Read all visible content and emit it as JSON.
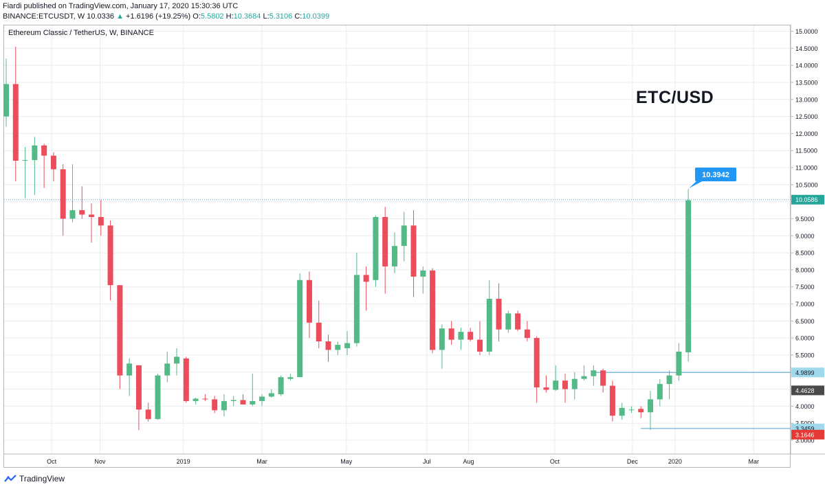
{
  "header": {
    "line1": "Fiardi published on TradingView.com, January 17, 2020 15:30:36 UTC",
    "symbol": "BINANCE:ETCUSDT, W",
    "last": "10.0336",
    "change": "+1.6196 (+19.25%)",
    "o_label": "O:",
    "o_val": "5.5802",
    "h_label": "H:",
    "h_val": "10.3684",
    "l_label": "L:",
    "l_val": "5.3106",
    "c_label": "C:",
    "c_val": "10.0399"
  },
  "symbol_label": "Ethereum Classic / TetherUS, W, BINANCE",
  "big_title": "ETC/USD",
  "footer": {
    "brand": "TradingView"
  },
  "colors": {
    "up": "#26a69a",
    "down": "#ef5350",
    "up_fill": "#53b987",
    "down_fill": "#eb4d5c",
    "line": "#4a9fd5",
    "callout": "#2196f3",
    "last_price_bg": "#26a69a"
  },
  "chart_data": {
    "type": "candlestick",
    "ylim": [
      2.9,
      15.1
    ],
    "yticks": [
      "3.0000",
      "3.5000",
      "4.0000",
      "4.5000",
      "5.0000",
      "5.5000",
      "6.0000",
      "6.5000",
      "7.0000",
      "7.5000",
      "8.0000",
      "8.5000",
      "9.0000",
      "9.5000",
      "10.0000",
      "10.5000",
      "11.0000",
      "11.5000",
      "12.0000",
      "12.5000",
      "13.0000",
      "13.5000",
      "14.0000",
      "14.5000",
      "15.0000"
    ],
    "xticks": [
      {
        "label": "Oct",
        "index": 4.8
      },
      {
        "label": "Nov",
        "index": 9.9
      },
      {
        "label": "2019",
        "index": 18.7
      },
      {
        "label": "Mar",
        "index": 27.0
      },
      {
        "label": "May",
        "index": 35.9
      },
      {
        "label": "Jul",
        "index": 44.4
      },
      {
        "label": "Aug",
        "index": 48.8
      },
      {
        "label": "Oct",
        "index": 57.9
      },
      {
        "label": "Dec",
        "index": 66.1
      },
      {
        "label": "2020",
        "index": 70.6
      },
      {
        "label": "Mar",
        "index": 78.9
      }
    ],
    "candles": [
      {
        "o": 12.5,
        "h": 14.2,
        "l": 12.2,
        "c": 13.45
      },
      {
        "o": 13.45,
        "h": 14.55,
        "l": 10.6,
        "c": 11.2
      },
      {
        "o": 11.2,
        "h": 11.6,
        "l": 10.1,
        "c": 11.22
      },
      {
        "o": 11.22,
        "h": 11.9,
        "l": 10.2,
        "c": 11.65
      },
      {
        "o": 11.65,
        "h": 11.7,
        "l": 10.4,
        "c": 11.35
      },
      {
        "o": 11.35,
        "h": 11.45,
        "l": 10.6,
        "c": 10.95
      },
      {
        "o": 10.95,
        "h": 11.1,
        "l": 9.0,
        "c": 9.5
      },
      {
        "o": 9.5,
        "h": 11.1,
        "l": 9.4,
        "c": 9.75
      },
      {
        "o": 9.75,
        "h": 10.45,
        "l": 9.5,
        "c": 9.62
      },
      {
        "o": 9.62,
        "h": 9.95,
        "l": 8.8,
        "c": 9.55
      },
      {
        "o": 9.55,
        "h": 10.05,
        "l": 9.0,
        "c": 9.3
      },
      {
        "o": 9.3,
        "h": 9.45,
        "l": 7.1,
        "c": 7.55
      },
      {
        "o": 7.55,
        "h": 7.55,
        "l": 4.5,
        "c": 4.9
      },
      {
        "o": 4.9,
        "h": 5.4,
        "l": 4.3,
        "c": 5.25
      },
      {
        "o": 5.2,
        "h": 5.2,
        "l": 3.3,
        "c": 3.9
      },
      {
        "o": 3.9,
        "h": 4.1,
        "l": 3.55,
        "c": 3.62
      },
      {
        "o": 3.62,
        "h": 4.95,
        "l": 3.6,
        "c": 4.9
      },
      {
        "o": 4.9,
        "h": 5.6,
        "l": 4.7,
        "c": 5.25
      },
      {
        "o": 5.25,
        "h": 5.7,
        "l": 4.9,
        "c": 5.45
      },
      {
        "o": 5.4,
        "h": 5.45,
        "l": 4.1,
        "c": 4.15
      },
      {
        "o": 4.15,
        "h": 4.25,
        "l": 4.05,
        "c": 4.22
      },
      {
        "o": 4.22,
        "h": 4.35,
        "l": 4.15,
        "c": 4.2
      },
      {
        "o": 4.2,
        "h": 4.3,
        "l": 3.8,
        "c": 3.88
      },
      {
        "o": 3.88,
        "h": 4.35,
        "l": 3.7,
        "c": 4.15
      },
      {
        "o": 4.15,
        "h": 4.3,
        "l": 4.0,
        "c": 4.18
      },
      {
        "o": 4.18,
        "h": 4.35,
        "l": 4.05,
        "c": 4.05
      },
      {
        "o": 4.05,
        "h": 4.95,
        "l": 4.0,
        "c": 4.15
      },
      {
        "o": 4.15,
        "h": 4.35,
        "l": 4.0,
        "c": 4.28
      },
      {
        "o": 4.28,
        "h": 4.5,
        "l": 4.25,
        "c": 4.38
      },
      {
        "o": 4.35,
        "h": 4.9,
        "l": 4.3,
        "c": 4.85
      },
      {
        "o": 4.8,
        "h": 4.95,
        "l": 4.75,
        "c": 4.85
      },
      {
        "o": 4.85,
        "h": 7.9,
        "l": 4.85,
        "c": 7.7
      },
      {
        "o": 7.7,
        "h": 7.95,
        "l": 6.0,
        "c": 6.45
      },
      {
        "o": 6.45,
        "h": 7.1,
        "l": 5.7,
        "c": 5.9
      },
      {
        "o": 5.9,
        "h": 6.1,
        "l": 5.3,
        "c": 5.65
      },
      {
        "o": 5.65,
        "h": 5.9,
        "l": 5.5,
        "c": 5.8
      },
      {
        "o": 5.7,
        "h": 6.2,
        "l": 5.5,
        "c": 5.85
      },
      {
        "o": 5.85,
        "h": 8.5,
        "l": 5.75,
        "c": 7.85
      },
      {
        "o": 7.85,
        "h": 8.1,
        "l": 6.8,
        "c": 7.65
      },
      {
        "o": 7.7,
        "h": 9.6,
        "l": 7.5,
        "c": 9.55
      },
      {
        "o": 9.55,
        "h": 9.85,
        "l": 7.3,
        "c": 8.1
      },
      {
        "o": 8.1,
        "h": 9.1,
        "l": 7.9,
        "c": 8.7
      },
      {
        "o": 8.7,
        "h": 9.7,
        "l": 8.25,
        "c": 9.3
      },
      {
        "o": 9.3,
        "h": 9.75,
        "l": 7.2,
        "c": 7.8
      },
      {
        "o": 7.8,
        "h": 8.1,
        "l": 7.3,
        "c": 7.98
      },
      {
        "o": 7.98,
        "h": 8.05,
        "l": 5.55,
        "c": 5.65
      },
      {
        "o": 5.65,
        "h": 6.4,
        "l": 5.1,
        "c": 6.28
      },
      {
        "o": 6.28,
        "h": 6.5,
        "l": 5.8,
        "c": 5.95
      },
      {
        "o": 5.95,
        "h": 6.3,
        "l": 5.65,
        "c": 6.18
      },
      {
        "o": 6.18,
        "h": 6.3,
        "l": 5.9,
        "c": 5.95
      },
      {
        "o": 5.95,
        "h": 6.5,
        "l": 5.5,
        "c": 5.6
      },
      {
        "o": 5.6,
        "h": 7.7,
        "l": 5.5,
        "c": 7.15
      },
      {
        "o": 7.15,
        "h": 7.6,
        "l": 5.9,
        "c": 6.25
      },
      {
        "o": 6.25,
        "h": 6.8,
        "l": 6.15,
        "c": 6.72
      },
      {
        "o": 6.72,
        "h": 6.8,
        "l": 6.2,
        "c": 6.25
      },
      {
        "o": 6.25,
        "h": 6.5,
        "l": 5.9,
        "c": 6.0
      },
      {
        "o": 6.0,
        "h": 6.05,
        "l": 4.1,
        "c": 4.55
      },
      {
        "o": 4.55,
        "h": 4.9,
        "l": 4.4,
        "c": 4.48
      },
      {
        "o": 4.48,
        "h": 5.2,
        "l": 4.45,
        "c": 4.75
      },
      {
        "o": 4.75,
        "h": 4.95,
        "l": 4.1,
        "c": 4.5
      },
      {
        "o": 4.5,
        "h": 5.0,
        "l": 4.2,
        "c": 4.8
      },
      {
        "o": 4.8,
        "h": 5.2,
        "l": 4.75,
        "c": 4.88
      },
      {
        "o": 4.88,
        "h": 5.2,
        "l": 4.6,
        "c": 5.05
      },
      {
        "o": 5.05,
        "h": 5.1,
        "l": 4.4,
        "c": 4.6
      },
      {
        "o": 4.6,
        "h": 4.75,
        "l": 3.55,
        "c": 3.72
      },
      {
        "o": 3.72,
        "h": 4.1,
        "l": 3.6,
        "c": 3.95
      },
      {
        "o": 3.9,
        "h": 4.0,
        "l": 3.8,
        "c": 3.9
      },
      {
        "o": 3.92,
        "h": 4.0,
        "l": 3.65,
        "c": 3.82
      },
      {
        "o": 3.82,
        "h": 4.45,
        "l": 3.3,
        "c": 4.2
      },
      {
        "o": 4.2,
        "h": 4.8,
        "l": 4.0,
        "c": 4.65
      },
      {
        "o": 4.65,
        "h": 5.05,
        "l": 4.2,
        "c": 4.9
      },
      {
        "o": 4.9,
        "h": 5.85,
        "l": 4.75,
        "c": 5.6
      },
      {
        "o": 5.58,
        "h": 10.37,
        "l": 5.31,
        "c": 10.04
      }
    ],
    "price_labels": [
      {
        "text": "10.0586",
        "price": 10.0586,
        "bg": "#26a69a",
        "fg": "#ffffff"
      },
      {
        "text": "4.9899",
        "price": 4.9899,
        "bg": "#a0d8ec",
        "fg": "#131722"
      },
      {
        "text": "4.4628",
        "price": 4.4628,
        "bg": "#4a4a4a",
        "fg": "#ffffff"
      },
      {
        "text": "3.3459",
        "price": 3.3459,
        "bg": "#a0d8ec",
        "fg": "#131722"
      },
      {
        "text": "3.1646",
        "price": 3.1646,
        "bg": "#e53935",
        "fg": "#ffffff"
      }
    ],
    "callout": {
      "text": "10.3942",
      "price": 10.3942
    },
    "hlines": [
      {
        "price": 10.0586,
        "from": 0,
        "style": "dotted"
      },
      {
        "price": 4.9899,
        "from": 62,
        "style": "solid"
      },
      {
        "price": 3.3459,
        "from": 67,
        "style": "solid"
      }
    ]
  }
}
